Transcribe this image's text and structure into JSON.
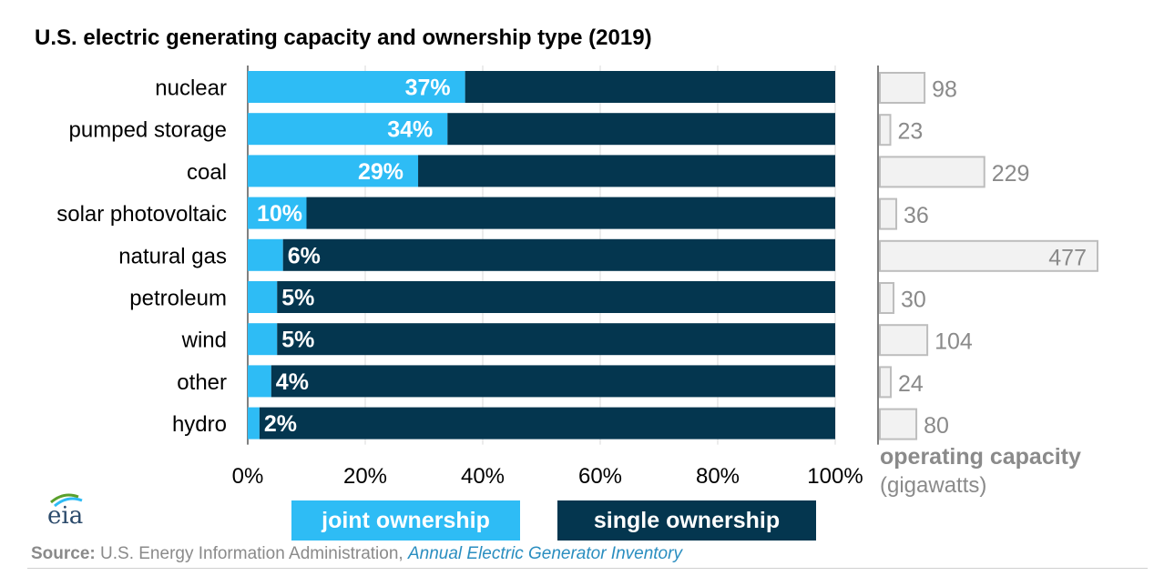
{
  "title": "U.S. electric generating capacity and ownership type (2019)",
  "colors": {
    "joint": "#2ebcf5",
    "single": "#04364f",
    "capacity_fill": "#f2f2f2",
    "capacity_stroke": "#bdbdbd",
    "muted": "#8a8a8a"
  },
  "legend": {
    "joint": "joint ownership",
    "single": "single ownership"
  },
  "capacity_axis": {
    "title": "operating capacity",
    "unit": "(gigawatts)"
  },
  "source": {
    "label": "Source:",
    "text": " U.S. Energy Information Administration, ",
    "link": "Annual Electric Generator Inventory"
  },
  "logo": {
    "text": "eia",
    "icon": "eia-logo-icon"
  },
  "chart_data": [
    {
      "type": "bar",
      "orientation": "horizontal",
      "stacked": true,
      "categories": [
        "nuclear",
        "pumped storage",
        "coal",
        "solar photovoltaic",
        "natural gas",
        "petroleum",
        "wind",
        "other",
        "hydro"
      ],
      "series": [
        {
          "name": "joint ownership",
          "values": [
            37,
            34,
            29,
            10,
            6,
            5,
            5,
            4,
            2
          ]
        },
        {
          "name": "single ownership",
          "values": [
            63,
            66,
            71,
            90,
            94,
            95,
            95,
            96,
            98
          ]
        }
      ],
      "data_labels": [
        "37%",
        "34%",
        "29%",
        "10%",
        "6%",
        "5%",
        "5%",
        "4%",
        "2%"
      ],
      "x_ticks": [
        "0%",
        "20%",
        "40%",
        "60%",
        "80%",
        "100%"
      ],
      "xlim": [
        0,
        100
      ],
      "grid": true,
      "legend_position": "bottom"
    },
    {
      "type": "bar",
      "orientation": "horizontal",
      "categories": [
        "nuclear",
        "pumped storage",
        "coal",
        "solar photovoltaic",
        "natural gas",
        "petroleum",
        "wind",
        "other",
        "hydro"
      ],
      "series": [
        {
          "name": "operating capacity",
          "values": [
            98,
            23,
            229,
            36,
            477,
            30,
            104,
            24,
            80
          ]
        }
      ],
      "xlabel": "operating capacity",
      "unit": "(gigawatts)"
    }
  ]
}
